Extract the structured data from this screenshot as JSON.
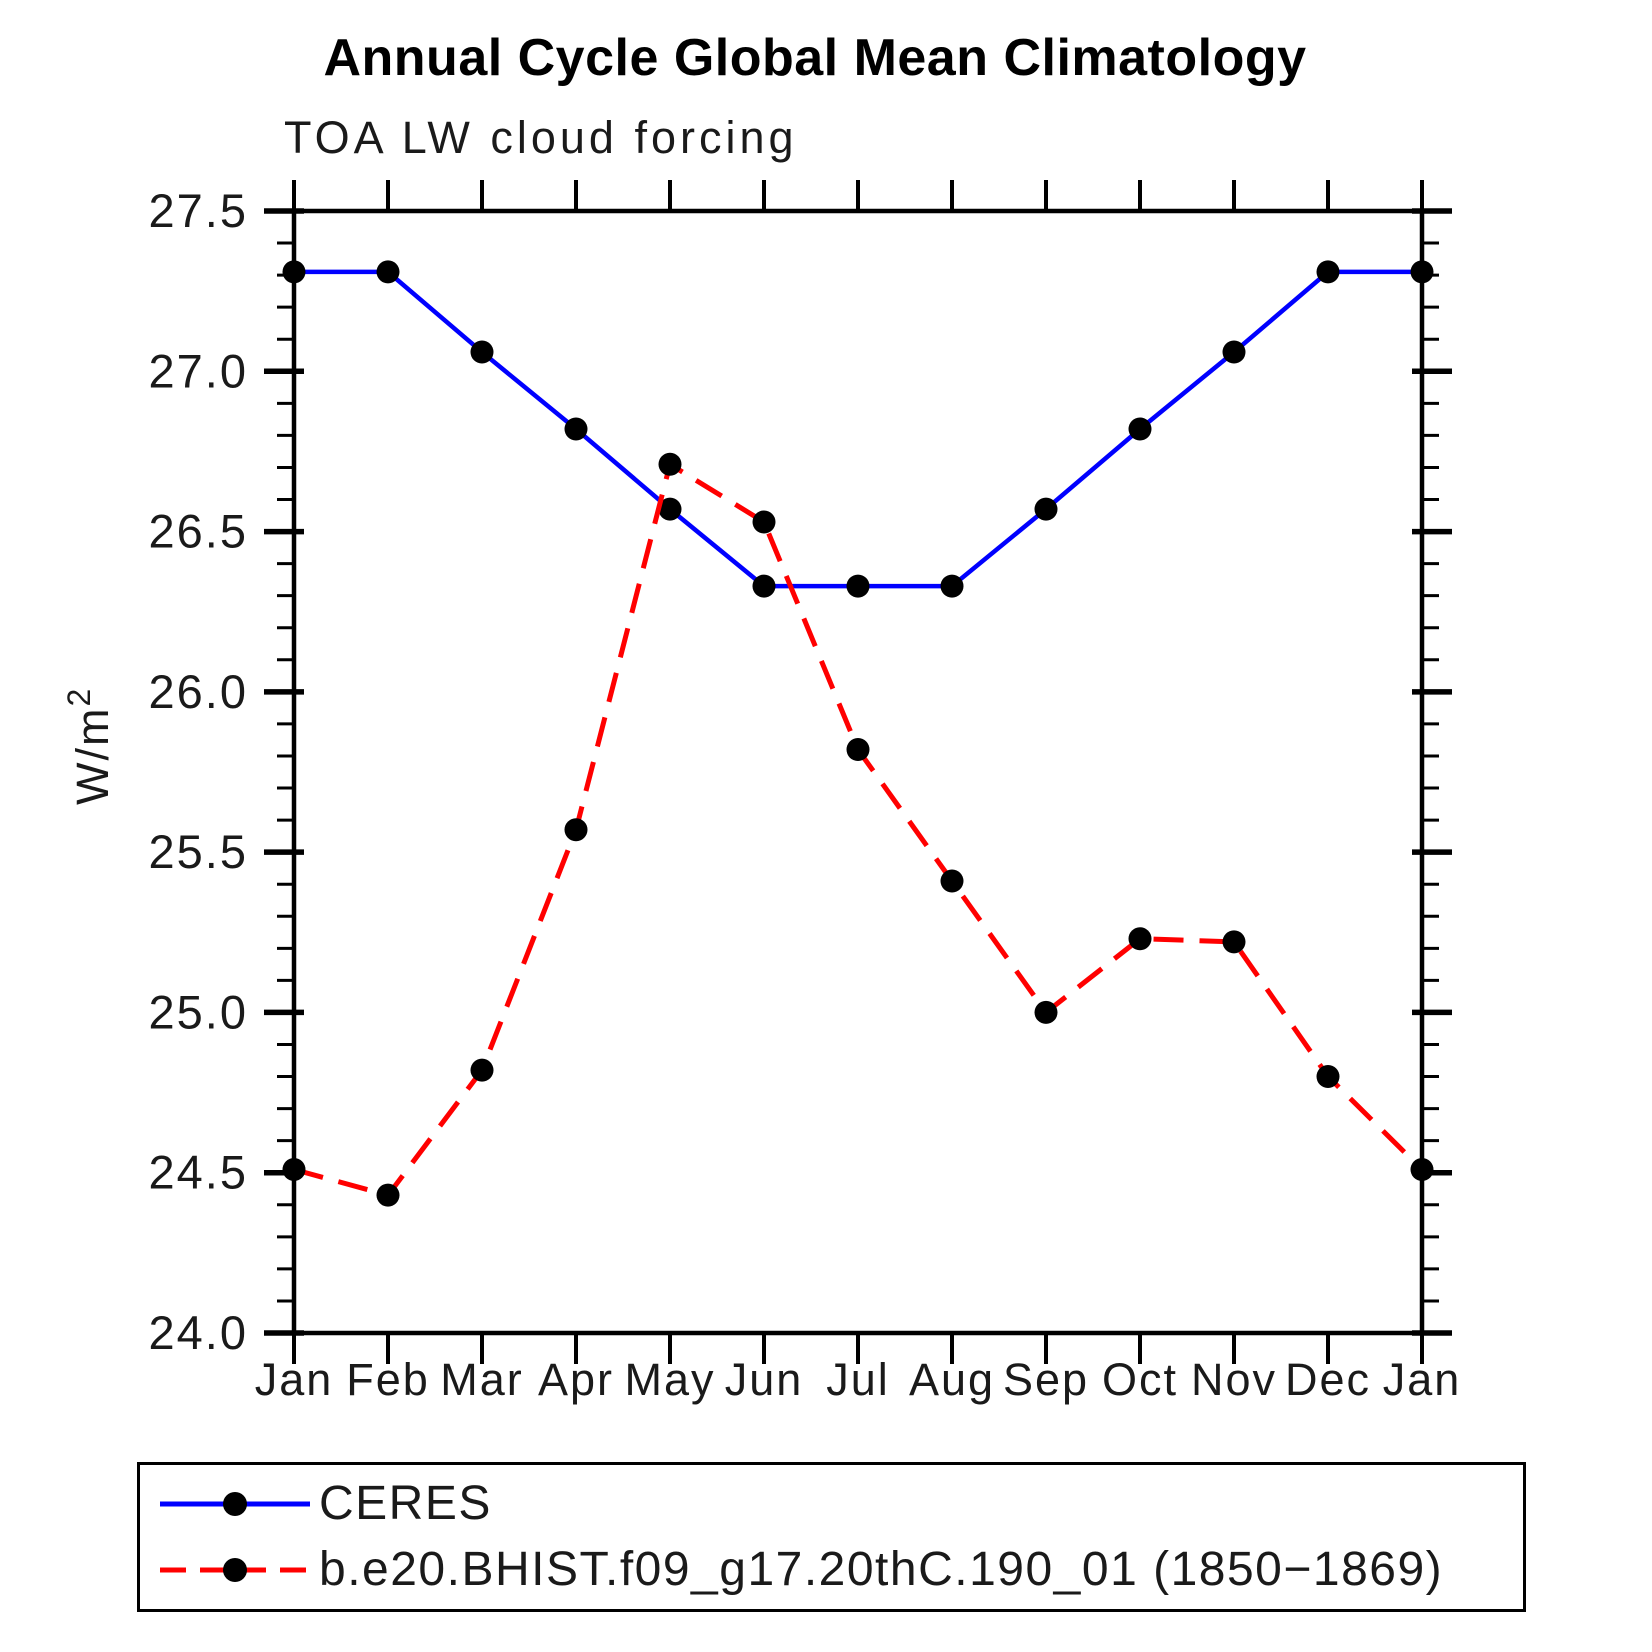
{
  "header": {
    "title": "Annual Cycle Global Mean Climatology",
    "subtitle": "TOA LW cloud forcing"
  },
  "colors": {
    "ceres_line": "#0000ff",
    "model_line": "#ff0000",
    "marker": "#000000",
    "axis": "#000000",
    "label_text": "#1a1a1a"
  },
  "chart_data": {
    "type": "line",
    "title": "Annual Cycle Global Mean Climatology",
    "subtitle": "TOA LW cloud forcing",
    "xlabel": "",
    "ylabel": "W/m²",
    "ylim": [
      24.0,
      27.5
    ],
    "ytick_major_step": 0.5,
    "ytick_minor_step": 0.1,
    "grid": false,
    "legend_position": "bottom",
    "categories": [
      "Jan",
      "Feb",
      "Mar",
      "Apr",
      "May",
      "Jun",
      "Jul",
      "Aug",
      "Sep",
      "Oct",
      "Nov",
      "Dec",
      "Jan"
    ],
    "series": [
      {
        "name": "CERES",
        "style": "solid",
        "color": "#0000ff",
        "values": [
          27.31,
          27.31,
          27.06,
          26.82,
          26.57,
          26.33,
          26.33,
          26.33,
          26.57,
          26.82,
          27.06,
          27.31,
          27.31
        ]
      },
      {
        "name": "b.e20.BHIST.f09_g17.20thC.190_01 (1850−1869)",
        "style": "dashed",
        "color": "#ff0000",
        "values": [
          24.51,
          24.43,
          24.82,
          25.57,
          26.71,
          26.53,
          25.82,
          25.41,
          25.0,
          25.23,
          25.22,
          24.8,
          24.51
        ]
      }
    ]
  }
}
